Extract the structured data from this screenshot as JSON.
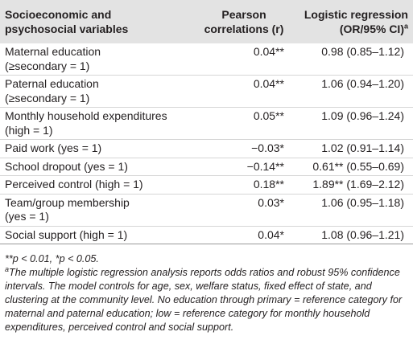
{
  "table": {
    "header": [
      [
        "Socioeconomic and",
        "psychosocial variables"
      ],
      [
        "Pearson",
        "correlations (r)"
      ],
      [
        "Logistic regression",
        "(OR/95% CI)"
      ]
    ],
    "header_note": "a",
    "rows": [
      [
        [
          "Maternal education",
          "(≥secondary = 1)"
        ],
        "0.04**",
        "0.98 (0.85–1.12)"
      ],
      [
        [
          "Paternal education",
          "(≥secondary = 1)"
        ],
        "0.04**",
        "1.06 (0.94–1.20)"
      ],
      [
        [
          "Monthly household expenditures",
          "(high = 1)"
        ],
        "0.05**",
        "1.09 (0.96–1.24)"
      ],
      [
        [
          "Paid work (yes = 1)"
        ],
        "−0.03*",
        "1.02 (0.91–1.14)"
      ],
      [
        [
          "School dropout (yes = 1)"
        ],
        "−0.14**",
        "0.61** (0.55–0.69)"
      ],
      [
        [
          "Perceived control (high = 1)"
        ],
        "0.18**",
        "1.89** (1.69–2.12)"
      ],
      [
        [
          "Team/group membership",
          "(yes = 1)"
        ],
        "0.03*",
        "1.06 (0.95–1.18)"
      ],
      [
        [
          "Social support (high = 1)"
        ],
        "0.04*",
        "1.08 (0.96–1.21)"
      ]
    ]
  },
  "footnotes": [
    {
      "text": "**p < 0.01, *p < 0.05."
    },
    {
      "mark": "a",
      "text": "The multiple logistic regression analysis reports odds ratios and robust 95% confidence intervals. The model controls for age, sex, welfare status, fixed effect of state, and clustering at the community level. No education through primary = reference category for maternal and paternal education; low = reference category for monthly household expenditures, perceived control and social support."
    }
  ]
}
